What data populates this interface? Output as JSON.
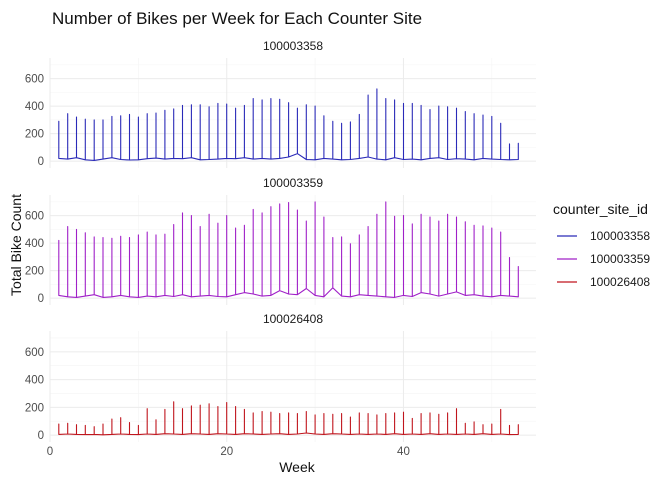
{
  "chart_data": {
    "type": "line",
    "title": "Number of Bikes per Week for Each Counter Site",
    "xlabel": "Week",
    "ylabel": "Total Bike Count",
    "xlim": [
      0,
      55
    ],
    "ylim": [
      -50,
      750
    ],
    "x_ticks": [
      0,
      20,
      40
    ],
    "y_ticks": [
      0,
      200,
      400,
      600
    ],
    "grid": true,
    "legend": {
      "title": "counter_site_id",
      "position": "right"
    },
    "series": [
      {
        "name": "100003358",
        "color": "#2a2ab8",
        "panel_label": "100003358",
        "weeks": [
          1,
          2,
          3,
          4,
          5,
          6,
          7,
          8,
          9,
          10,
          11,
          12,
          13,
          14,
          15,
          16,
          17,
          18,
          19,
          20,
          21,
          22,
          23,
          24,
          25,
          26,
          27,
          28,
          29,
          30,
          31,
          32,
          33,
          34,
          35,
          36,
          37,
          38,
          39,
          40,
          41,
          42,
          43,
          44,
          45,
          46,
          47,
          48,
          49,
          50,
          51,
          52,
          53
        ],
        "peaks": [
          290,
          345,
          320,
          305,
          300,
          300,
          325,
          330,
          340,
          320,
          345,
          350,
          370,
          380,
          405,
          410,
          410,
          395,
          420,
          415,
          385,
          405,
          455,
          445,
          455,
          450,
          425,
          385,
          410,
          400,
          330,
          290,
          275,
          285,
          340,
          480,
          525,
          455,
          445,
          420,
          420,
          405,
          375,
          400,
          395,
          385,
          360,
          345,
          335,
          325,
          275,
          125,
          130
        ],
        "lows": [
          20,
          15,
          25,
          10,
          5,
          15,
          25,
          12,
          8,
          10,
          18,
          22,
          15,
          20,
          18,
          25,
          10,
          12,
          15,
          20,
          18,
          25,
          15,
          20,
          15,
          20,
          30,
          55,
          12,
          10,
          20,
          15,
          10,
          12,
          20,
          30,
          15,
          10,
          25,
          12,
          15,
          10,
          20,
          25,
          12,
          18,
          15,
          10,
          20,
          15,
          12,
          10,
          12
        ]
      },
      {
        "name": "100003359",
        "color": "#a020c8",
        "panel_label": "100003359",
        "weeks": [
          1,
          2,
          3,
          4,
          5,
          6,
          7,
          8,
          9,
          10,
          11,
          12,
          13,
          14,
          15,
          16,
          17,
          18,
          19,
          20,
          21,
          22,
          23,
          24,
          25,
          26,
          27,
          28,
          29,
          30,
          31,
          32,
          33,
          34,
          35,
          36,
          37,
          38,
          39,
          40,
          41,
          42,
          43,
          44,
          45,
          46,
          47,
          48,
          49,
          50,
          51,
          52,
          53
        ],
        "peaks": [
          420,
          520,
          500,
          475,
          445,
          440,
          435,
          450,
          440,
          460,
          480,
          460,
          465,
          535,
          620,
          600,
          520,
          610,
          545,
          600,
          510,
          530,
          645,
          620,
          665,
          685,
          695,
          640,
          560,
          700,
          590,
          440,
          445,
          395,
          460,
          520,
          610,
          700,
          595,
          600,
          540,
          610,
          590,
          560,
          610,
          590,
          555,
          530,
          525,
          510,
          480,
          295,
          230
        ],
        "lows": [
          20,
          10,
          5,
          15,
          25,
          5,
          10,
          20,
          10,
          5,
          15,
          10,
          20,
          12,
          25,
          10,
          15,
          20,
          12,
          10,
          25,
          40,
          30,
          15,
          20,
          55,
          30,
          25,
          70,
          20,
          10,
          75,
          15,
          10,
          25,
          20,
          15,
          10,
          5,
          20,
          12,
          40,
          30,
          15,
          30,
          45,
          20,
          25,
          15,
          10,
          20,
          15,
          10
        ]
      },
      {
        "name": "100026408",
        "color": "#c0151d",
        "panel_label": "100026408",
        "weeks": [
          1,
          2,
          3,
          4,
          5,
          6,
          7,
          8,
          9,
          10,
          11,
          12,
          13,
          14,
          15,
          16,
          17,
          18,
          19,
          20,
          21,
          22,
          23,
          24,
          25,
          26,
          27,
          28,
          29,
          30,
          31,
          32,
          33,
          34,
          35,
          36,
          37,
          38,
          39,
          40,
          41,
          42,
          43,
          44,
          45,
          46,
          47,
          48,
          49,
          50,
          51,
          52,
          53
        ],
        "peaks": [
          80,
          85,
          75,
          70,
          60,
          80,
          115,
          125,
          90,
          70,
          190,
          110,
          185,
          240,
          190,
          210,
          215,
          225,
          205,
          235,
          205,
          185,
          160,
          170,
          165,
          155,
          160,
          155,
          170,
          145,
          155,
          150,
          155,
          130,
          160,
          155,
          145,
          155,
          160,
          165,
          120,
          155,
          160,
          150,
          160,
          190,
          85,
          95,
          75,
          80,
          185,
          70,
          75
        ],
        "lows": [
          5,
          8,
          5,
          3,
          5,
          2,
          5,
          8,
          5,
          3,
          8,
          5,
          10,
          8,
          5,
          10,
          8,
          5,
          10,
          8,
          5,
          10,
          8,
          5,
          8,
          10,
          5,
          8,
          15,
          8,
          5,
          10,
          8,
          5,
          8,
          5,
          8,
          5,
          10,
          5,
          8,
          5,
          10,
          5,
          8,
          5,
          8,
          5,
          10,
          5,
          8,
          3,
          5
        ]
      }
    ]
  }
}
